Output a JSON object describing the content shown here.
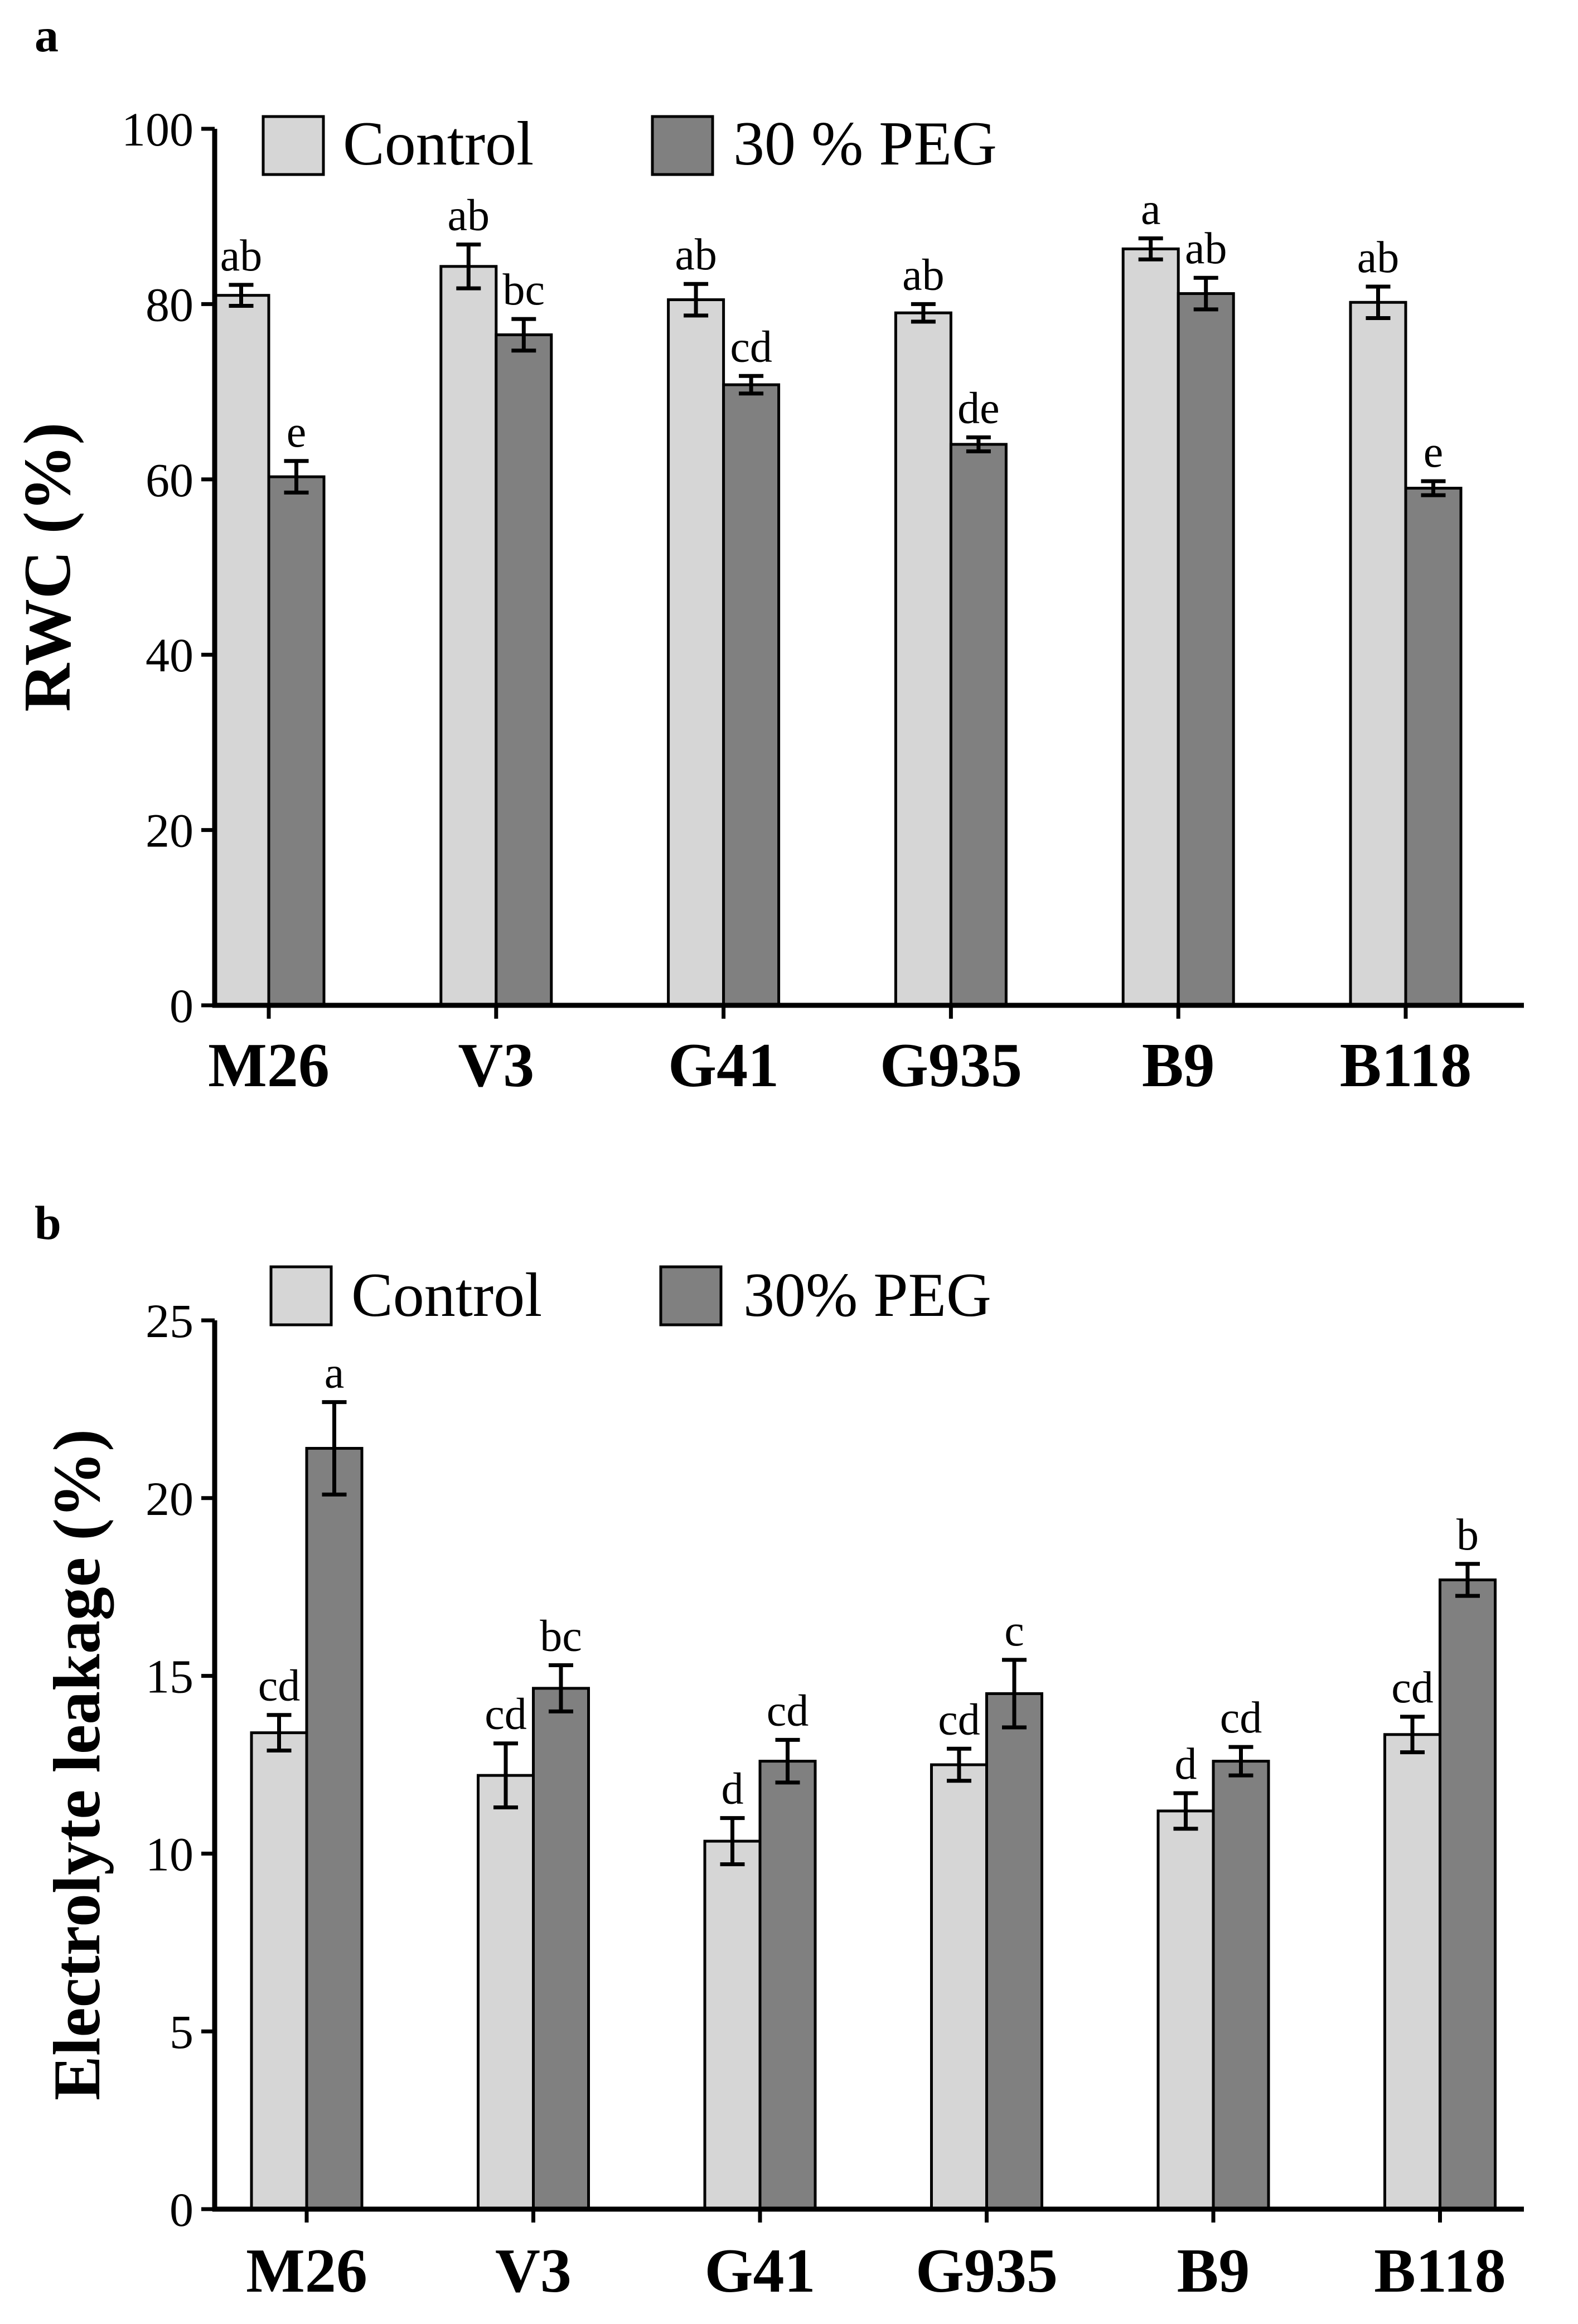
{
  "colors": {
    "control": "#d6d6d6",
    "peg": "#808080",
    "axis": "#000000"
  },
  "chart_data": [
    {
      "type": "bar",
      "panel_label": "a",
      "title": "",
      "xlabel": "",
      "ylabel": "RWC (%)",
      "ylim": [
        0,
        100
      ],
      "yticks": [
        0,
        20,
        40,
        60,
        80,
        100
      ],
      "grid": false,
      "legend_position": "top",
      "categories": [
        "M26",
        "V3",
        "G41",
        "G935",
        "B9",
        "B118"
      ],
      "series": [
        {
          "name": "Control",
          "values": [
            81,
            84.3,
            80.5,
            79,
            86.3,
            80.2
          ],
          "errors": [
            1.2,
            2.5,
            1.8,
            1.0,
            1.2,
            1.8
          ],
          "labels": [
            "ab",
            "ab",
            "ab",
            "ab",
            "a",
            "ab"
          ]
        },
        {
          "name": "30 % PEG",
          "values": [
            60.3,
            76.5,
            70.8,
            64,
            81.2,
            59
          ],
          "errors": [
            1.8,
            1.8,
            1.0,
            0.8,
            1.8,
            0.8
          ],
          "labels": [
            "e",
            "bc",
            "cd",
            "de",
            "ab",
            "e"
          ]
        }
      ]
    },
    {
      "type": "bar",
      "panel_label": "b",
      "title": "",
      "xlabel": "",
      "ylabel": "Electrolyte leakage (%)",
      "ylim": [
        0,
        25
      ],
      "yticks": [
        0,
        5,
        10,
        15,
        20,
        25
      ],
      "grid": false,
      "legend_position": "top",
      "categories": [
        "M26",
        "V3",
        "G41",
        "G935",
        "B9",
        "B118"
      ],
      "series": [
        {
          "name": "Control",
          "values": [
            13.4,
            12.2,
            10.35,
            12.5,
            11.2,
            13.35
          ],
          "errors": [
            0.5,
            0.9,
            0.65,
            0.45,
            0.5,
            0.5
          ],
          "labels": [
            "cd",
            "cd",
            "d",
            "cd",
            "d",
            "cd"
          ]
        },
        {
          "name": "30% PEG",
          "values": [
            21.4,
            14.65,
            12.6,
            14.5,
            12.6,
            17.7
          ],
          "errors": [
            1.3,
            0.65,
            0.6,
            0.95,
            0.4,
            0.45
          ],
          "labels": [
            "a",
            "bc",
            "cd",
            "c",
            "cd",
            "b"
          ]
        }
      ]
    }
  ]
}
